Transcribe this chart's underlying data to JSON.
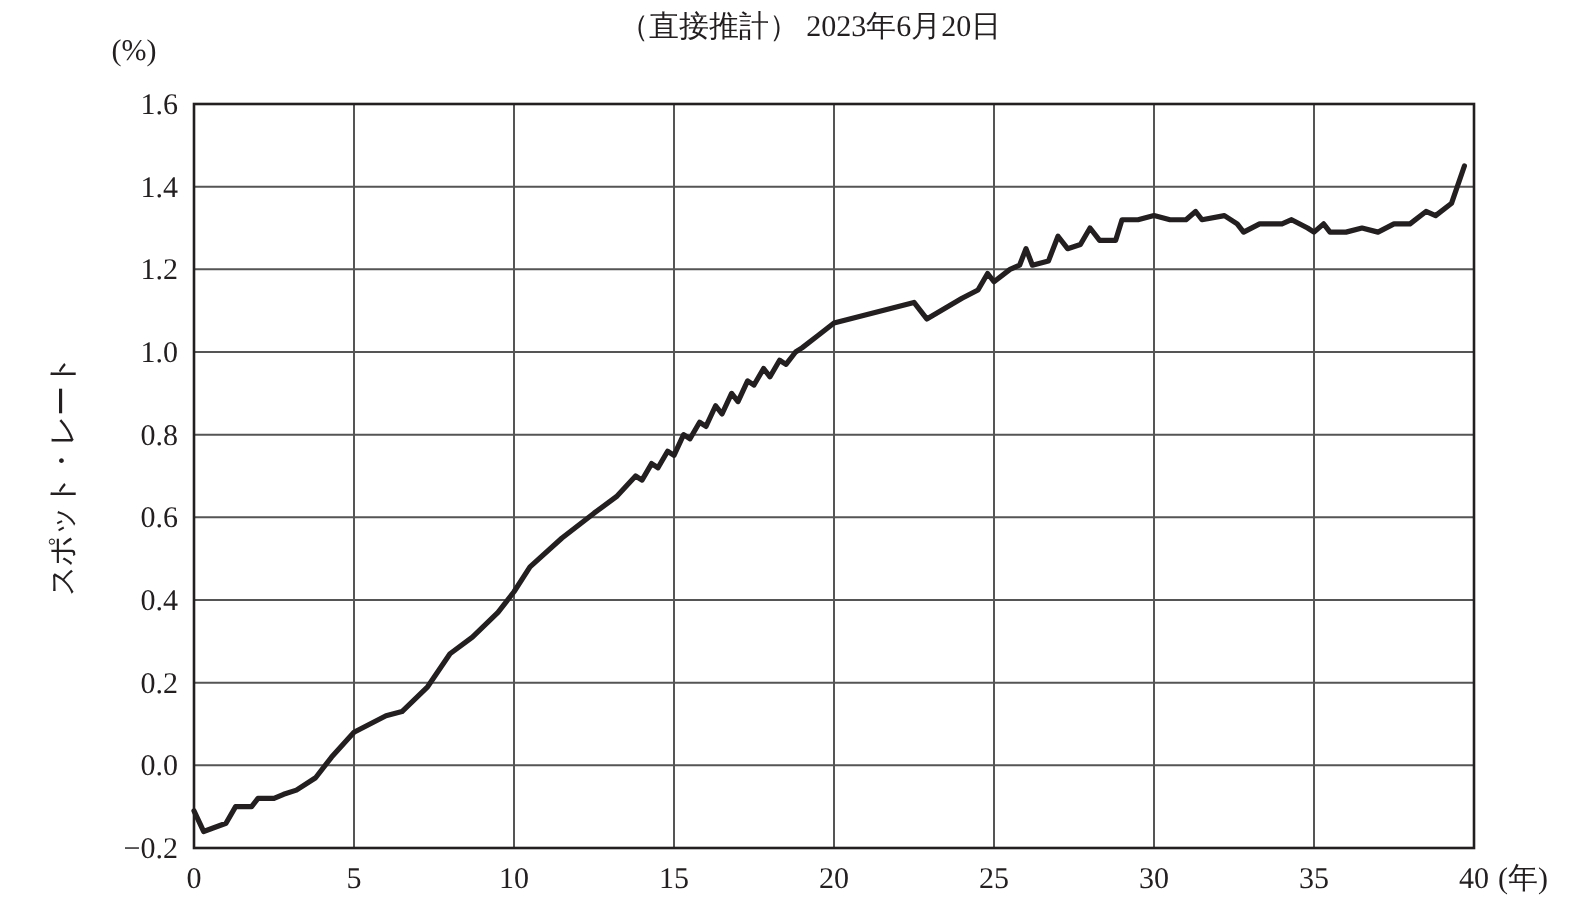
{
  "chart_data": {
    "type": "line",
    "title": "（直接推計） 2023年6月20日",
    "xlabel": "(年)",
    "ylabel": "スポット・レート",
    "annotations": [
      "(%)"
    ],
    "xlim": [
      0,
      40
    ],
    "ylim": [
      -0.2,
      1.6
    ],
    "xticks": [
      0,
      5,
      10,
      15,
      20,
      25,
      30,
      35,
      40
    ],
    "yticks": [
      {
        "value": -0.2,
        "label": "−0.2"
      },
      {
        "value": 0,
        "label": "0.0"
      },
      {
        "value": 0.2,
        "label": "0.2"
      },
      {
        "value": 0.4,
        "label": "0.4"
      },
      {
        "value": 0.6,
        "label": "0.6"
      },
      {
        "value": 0.8,
        "label": "0.8"
      },
      {
        "value": 1.0,
        "label": "1.0"
      },
      {
        "value": 1.2,
        "label": "1.2"
      },
      {
        "value": 1.4,
        "label": "1.4"
      },
      {
        "value": 1.6,
        "label": "1.6"
      }
    ],
    "grid": true,
    "marker": "none",
    "line_style": "solid",
    "series": [
      {
        "color": "#231f20",
        "x": [
          0,
          0.3,
          1,
          1.3,
          1.8,
          2,
          2.5,
          2.8,
          3.2,
          3.8,
          4.3,
          5,
          6,
          6.5,
          7.3,
          8,
          8.7,
          9.5,
          10,
          10.5,
          11.5,
          12.5,
          13.2,
          13.8,
          14,
          14.3,
          14.5,
          14.8,
          15,
          15.3,
          15.5,
          15.8,
          16,
          16.3,
          16.5,
          16.8,
          17,
          17.3,
          17.5,
          17.8,
          18,
          18.3,
          18.5,
          18.8,
          19,
          19.5,
          20,
          22.5,
          22.9,
          24,
          24.5,
          24.8,
          25,
          25.5,
          25.8,
          26,
          26.2,
          26.7,
          27,
          27.3,
          27.7,
          28,
          28.3,
          28.8,
          29,
          29.5,
          30,
          30.5,
          31,
          31.3,
          31.5,
          32.2,
          32.6,
          32.8,
          33.3,
          34,
          34.3,
          34.8,
          35,
          35.3,
          35.5,
          36,
          36.5,
          37,
          37.5,
          38,
          38.5,
          38.8,
          39.3,
          39.7
        ],
        "values": [
          -0.11,
          -0.16,
          -0.14,
          -0.1,
          -0.1,
          -0.08,
          -0.08,
          -0.07,
          -0.06,
          -0.03,
          0.02,
          0.08,
          0.12,
          0.13,
          0.19,
          0.27,
          0.31,
          0.37,
          0.42,
          0.48,
          0.55,
          0.61,
          0.65,
          0.7,
          0.69,
          0.73,
          0.72,
          0.76,
          0.75,
          0.8,
          0.79,
          0.83,
          0.82,
          0.87,
          0.85,
          0.9,
          0.88,
          0.93,
          0.92,
          0.96,
          0.94,
          0.98,
          0.97,
          1.0,
          1.01,
          1.04,
          1.07,
          1.12,
          1.08,
          1.13,
          1.15,
          1.19,
          1.17,
          1.2,
          1.21,
          1.25,
          1.21,
          1.22,
          1.28,
          1.25,
          1.26,
          1.3,
          1.27,
          1.27,
          1.32,
          1.32,
          1.33,
          1.32,
          1.32,
          1.34,
          1.32,
          1.33,
          1.31,
          1.29,
          1.31,
          1.31,
          1.32,
          1.3,
          1.29,
          1.31,
          1.29,
          1.29,
          1.3,
          1.29,
          1.31,
          1.31,
          1.34,
          1.33,
          1.36,
          1.45
        ]
      }
    ]
  }
}
